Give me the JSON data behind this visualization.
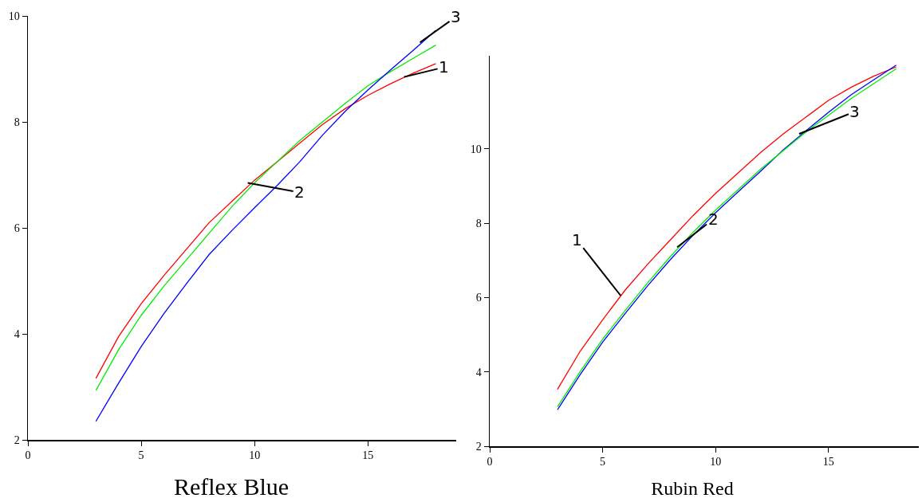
{
  "chart_data": [
    {
      "type": "line",
      "title": "Reflex Blue",
      "x": [
        3,
        4,
        5,
        6,
        7,
        8,
        9,
        10,
        11,
        12,
        13,
        14,
        15,
        16,
        17,
        18
      ],
      "xlim": [
        0,
        18.9
      ],
      "xticks": [
        0,
        5,
        10,
        15
      ],
      "ylim": [
        2,
        10
      ],
      "yticks": [
        2,
        4,
        6,
        8,
        10
      ],
      "grid": false,
      "marker": "none",
      "line_style": "solid",
      "series": [
        {
          "color": "#ff0000",
          "values": [
            3.16,
            3.95,
            4.57,
            5.1,
            5.6,
            6.1,
            6.5,
            6.9,
            7.25,
            7.6,
            7.95,
            8.25,
            8.5,
            8.72,
            8.92,
            9.1
          ]
        },
        {
          "color": "#00ee00",
          "values": [
            2.93,
            3.7,
            4.35,
            4.9,
            5.4,
            5.9,
            6.4,
            6.85,
            7.25,
            7.65,
            8.0,
            8.35,
            8.68,
            8.95,
            9.2,
            9.45
          ]
        },
        {
          "color": "#0000ff",
          "values": [
            2.35,
            3.07,
            3.76,
            4.38,
            4.95,
            5.5,
            5.95,
            6.38,
            6.8,
            7.25,
            7.75,
            8.2,
            8.6,
            8.98,
            9.35,
            9.73
          ]
        }
      ],
      "annotations": [
        {
          "text": "1",
          "x": 16.6,
          "y": 8.85
        },
        {
          "text": "2",
          "x": 9.7,
          "y": 6.85
        },
        {
          "text": "3",
          "x": 17.3,
          "y": 9.5
        }
      ]
    },
    {
      "type": "line",
      "title": "Rubin Red",
      "x": [
        3,
        4,
        5,
        6,
        7,
        8,
        9,
        10,
        11,
        12,
        13,
        14,
        15,
        16,
        17,
        18
      ],
      "xlim": [
        0,
        19
      ],
      "xticks": [
        0,
        5,
        10,
        15
      ],
      "ylim": [
        2,
        12.5
      ],
      "yticks": [
        2,
        4,
        6,
        8,
        10
      ],
      "grid": false,
      "marker": "none",
      "line_style": "solid",
      "series": [
        {
          "color": "#ff0000",
          "values": [
            3.53,
            4.55,
            5.4,
            6.2,
            6.9,
            7.55,
            8.2,
            8.8,
            9.35,
            9.9,
            10.4,
            10.85,
            11.3,
            11.65,
            11.95,
            12.2
          ]
        },
        {
          "color": "#0000ff",
          "values": [
            2.98,
            3.92,
            4.8,
            5.57,
            6.32,
            7.02,
            7.67,
            8.28,
            8.84,
            9.4,
            9.97,
            10.48,
            10.98,
            11.45,
            11.85,
            12.25
          ]
        },
        {
          "color": "#00ee00",
          "values": [
            3.06,
            4.0,
            4.88,
            5.65,
            6.4,
            7.1,
            7.75,
            8.35,
            8.9,
            9.45,
            9.95,
            10.45,
            10.9,
            11.35,
            11.75,
            12.15
          ]
        }
      ],
      "annotations": [
        {
          "text": "1",
          "x": 5.8,
          "y": 6.05
        },
        {
          "text": "2",
          "x": 8.3,
          "y": 7.35
        },
        {
          "text": "3",
          "x": 13.7,
          "y": 10.4
        }
      ]
    }
  ]
}
